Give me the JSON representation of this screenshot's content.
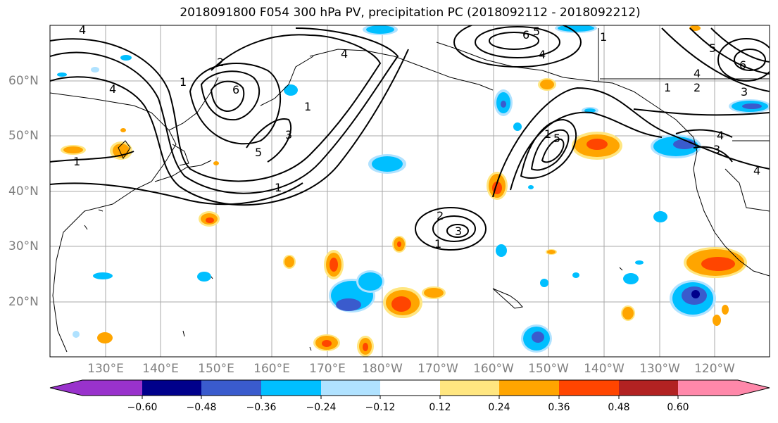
{
  "title": "2018091800 F054 300 hPa PV, precipitation PC (2018092112 - 2018092212)",
  "lat_labels": [
    "60°N",
    "50°N",
    "40°N",
    "30°N",
    "20°N"
  ],
  "lon_labels": [
    "130°E",
    "140°E",
    "150°E",
    "160°E",
    "170°E",
    "180°W",
    "170°W",
    "160°W",
    "150°W",
    "140°W",
    "130°W",
    "120°W"
  ],
  "contour_labels": [
    "1",
    "2",
    "3",
    "4",
    "5",
    "6"
  ],
  "colorbar": {
    "ticks": [
      "−0.60",
      "−0.48",
      "−0.36",
      "−0.24",
      "−0.12",
      "0.12",
      "0.24",
      "0.36",
      "0.48",
      "0.60"
    ],
    "colors": [
      "#9932cc",
      "#00008b",
      "#3a5bcd",
      "#00bfff",
      "#b0e2ff",
      "#ffffff",
      "#ffe680",
      "#ffa500",
      "#ff4500",
      "#b22222",
      "#ff88aa"
    ]
  }
}
